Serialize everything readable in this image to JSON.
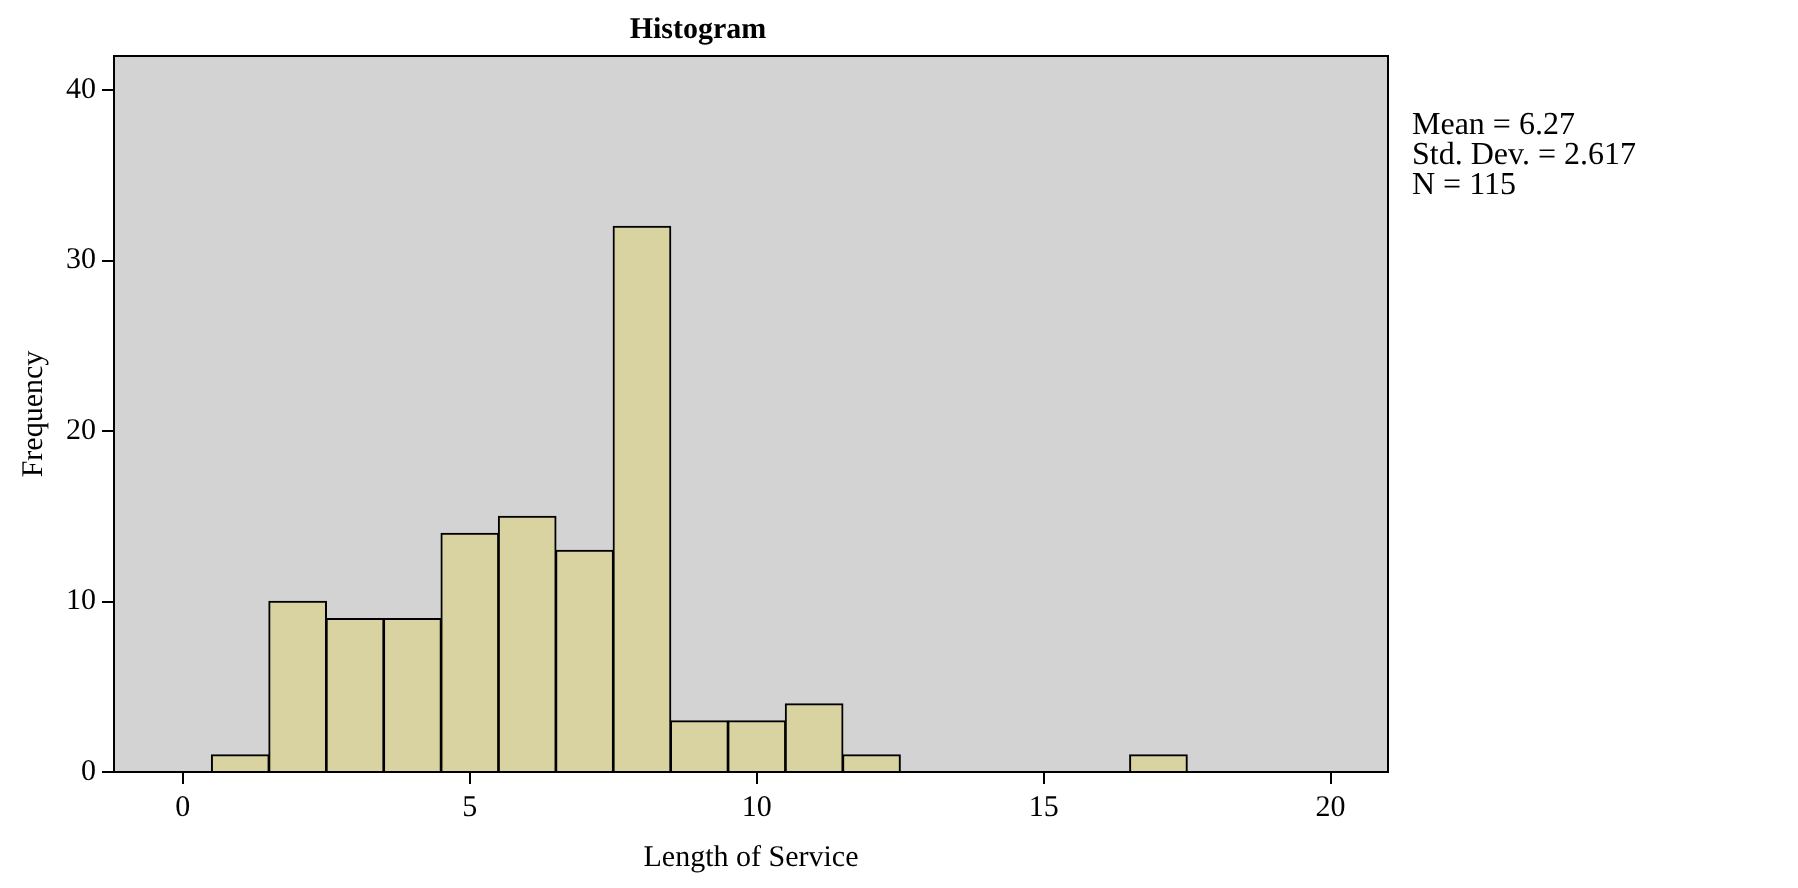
{
  "chart_data": {
    "type": "histogram",
    "title": "Histogram",
    "xlabel": "Length of Service",
    "ylabel": "Frequency",
    "bins": [
      0.5,
      1.5,
      2.5,
      3.5,
      4.5,
      5.5,
      6.5,
      7.5,
      8.5,
      9.5,
      10.5,
      11.5,
      12.5,
      13.5,
      14.5,
      15.5,
      16.5,
      17.5
    ],
    "values": [
      1,
      10,
      9,
      9,
      14,
      15,
      13,
      32,
      3,
      3,
      4,
      1,
      0,
      0,
      0,
      0,
      1
    ],
    "color": "#d8d3a0",
    "xlim": [
      -1.2,
      21
    ],
    "xticks": [
      0,
      5,
      10,
      15,
      20
    ],
    "ylim": [
      0,
      42
    ],
    "yticks": [
      0,
      10,
      20,
      30,
      40
    ],
    "annotations": [
      "Mean = 6.27",
      "Std. Dev. = 2.617",
      "N = 115"
    ],
    "grid": false,
    "legend": false
  }
}
